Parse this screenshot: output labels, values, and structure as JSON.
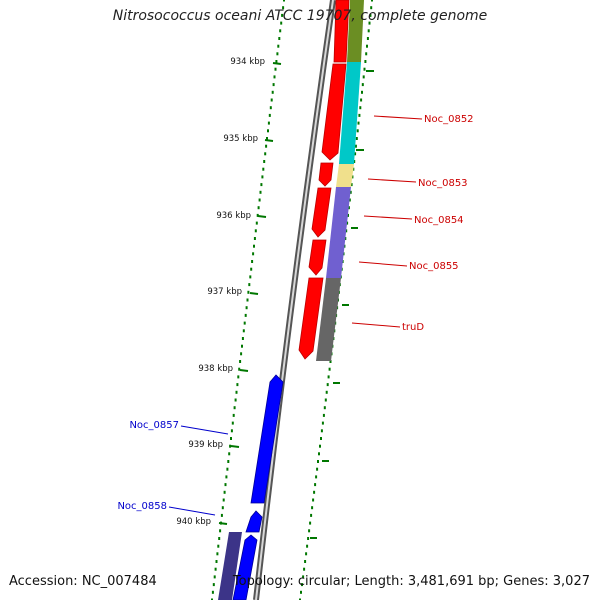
{
  "title": "Nitrosococcus oceani ATCC 19707, complete genome",
  "footer": {
    "accession": "Accession: NC_007484",
    "summary": "Topology: circular; Length: 3,481,691 bp; Genes: 3,027"
  },
  "colors": {
    "forward_gene": "#ff0000",
    "reverse_gene": "#0000ff",
    "tick": "#007700",
    "backbone": "#999999",
    "forward_label": "#cc0000",
    "reverse_label": "#0000cc"
  },
  "scale": {
    "ticks": [
      "934 kbp",
      "935 kbp",
      "936 kbp",
      "937 kbp",
      "938 kbp",
      "939 kbp",
      "940 kbp"
    ]
  },
  "gene_labels": [
    {
      "name": "Noc_0852",
      "strand": "forward"
    },
    {
      "name": "Noc_0853",
      "strand": "forward"
    },
    {
      "name": "Noc_0854",
      "strand": "forward"
    },
    {
      "name": "Noc_0855",
      "strand": "forward"
    },
    {
      "name": "truD",
      "strand": "forward"
    },
    {
      "name": "Noc_0857",
      "strand": "reverse"
    },
    {
      "name": "Noc_0858",
      "strand": "reverse"
    }
  ]
}
